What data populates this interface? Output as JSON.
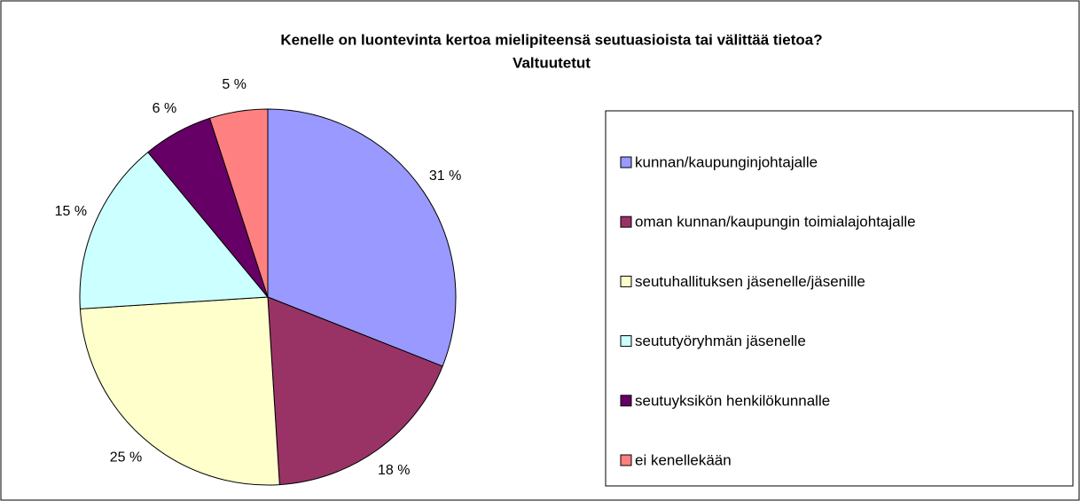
{
  "chart_data": {
    "type": "pie",
    "title": "Kenelle on luontevinta kertoa mielipiteensä seutuasioista tai välittää tietoa?",
    "subtitle": "Valtuutetut",
    "categories": [
      "kunnan/kaupunginjohtajalle",
      "oman kunnan/kaupungin toimialajohtajalle",
      "seutuhallituksen jäsenelle/jäsenille",
      "seututyöryhmän jäsenelle",
      "seutuyksikön henkilökunnalle",
      "ei kenellekään"
    ],
    "values": [
      31,
      18,
      25,
      15,
      6,
      5
    ],
    "value_labels": [
      "31 %",
      "18 %",
      "25 %",
      "15 %",
      "6 %",
      "5 %"
    ],
    "colors": [
      "#9999ff",
      "#993366",
      "#ffffcc",
      "#ccffff",
      "#660066",
      "#ff8080"
    ],
    "legend": "right"
  }
}
